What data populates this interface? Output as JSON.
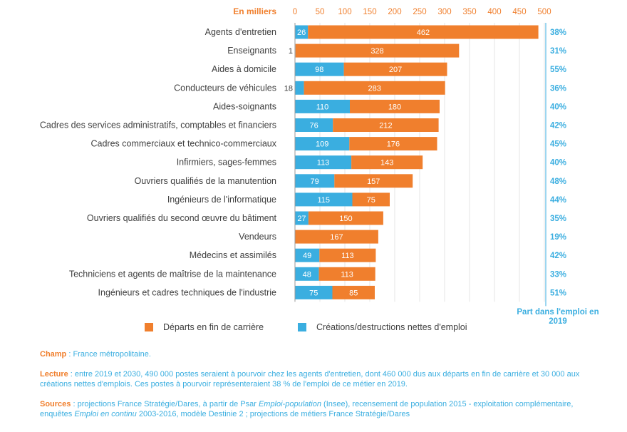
{
  "colors": {
    "departures": "#f07f2d",
    "creations": "#3aaee0",
    "axis": "#9a9a9a",
    "grid": "#e6e6e6"
  },
  "chart_data": {
    "type": "bar",
    "orientation": "horizontal",
    "stacked": true,
    "unit_label": "En milliers",
    "xlim": [
      0,
      500
    ],
    "xticks": [
      0,
      50,
      100,
      150,
      200,
      250,
      300,
      350,
      400,
      450,
      500
    ],
    "grid": true,
    "legend_position": "bottom",
    "categories": [
      "Agents d'entretien",
      "Enseignants",
      "Aides à domicile",
      "Conducteurs de véhicules",
      "Aides-soignants",
      "Cadres des services administratifs, comptables et financiers",
      "Cadres commerciaux et technico-commerciaux",
      "Infirmiers, sages-femmes",
      "Ouvriers qualifiés de la manutention",
      "Ingénieurs de l'informatique",
      "Ouvriers qualifiés du second œuvre du bâtiment",
      "Vendeurs",
      "Médecins et assimilés",
      "Techniciens et agents de maîtrise de la maintenance",
      "Ingénieurs et cadres techniques de l'industrie"
    ],
    "series": [
      {
        "name": "Créations/destructions nettes d'emploi",
        "values": [
          26,
          1,
          98,
          18,
          110,
          76,
          109,
          113,
          79,
          115,
          27,
          0,
          49,
          48,
          75
        ],
        "labels": [
          "26",
          "1",
          "98",
          "18",
          "110",
          "76",
          "109",
          "113",
          "79",
          "115",
          "27",
          "",
          "49",
          "48",
          "75"
        ]
      },
      {
        "name": "Départs en fin de carrière",
        "values": [
          462,
          328,
          207,
          283,
          180,
          212,
          176,
          143,
          157,
          75,
          150,
          167,
          113,
          113,
          85
        ],
        "labels": [
          "462",
          "328",
          "207",
          "283",
          "180",
          "212",
          "176",
          "143",
          "157",
          "75",
          "150",
          "167",
          "113",
          "113",
          "85"
        ]
      }
    ],
    "share_title": "Part dans l'emploi en 2019",
    "share_labels": [
      "38%",
      "31%",
      "55%",
      "36%",
      "40%",
      "42%",
      "45%",
      "40%",
      "48%",
      "44%",
      "35%",
      "19%",
      "42%",
      "33%",
      "51%"
    ]
  },
  "legend": {
    "departures": "Départs en fin de carrière",
    "creations": "Créations/destructions nettes d'emploi"
  },
  "notes": {
    "champ_key": "Champ",
    "champ_text": " : France métropolitaine.",
    "lecture_key": "Lecture",
    "lecture_text": " : entre 2019 et 2030, 490 000 postes seraient à pourvoir chez les agents d'entretien, dont 460 000 dus aux départs en fin de carrière et 30 000 aux créations nettes d'emplois. Ces postes à pourvoir représenteraient 38 % de l'emploi de ce métier en 2019.",
    "sources_key": "Sources",
    "sources_text_1": " : projections France Stratégie/Dares, à partir de Psar ",
    "sources_italic_1": "Emploi-population",
    "sources_text_2": " (Insee), recensement de population 2015 - exploitation complémentaire, enquêtes ",
    "sources_italic_2": "Emploi en continu",
    "sources_text_3": " 2003-2016, modèle Destinie 2 ; projections de métiers France Stratégie/Dares"
  }
}
